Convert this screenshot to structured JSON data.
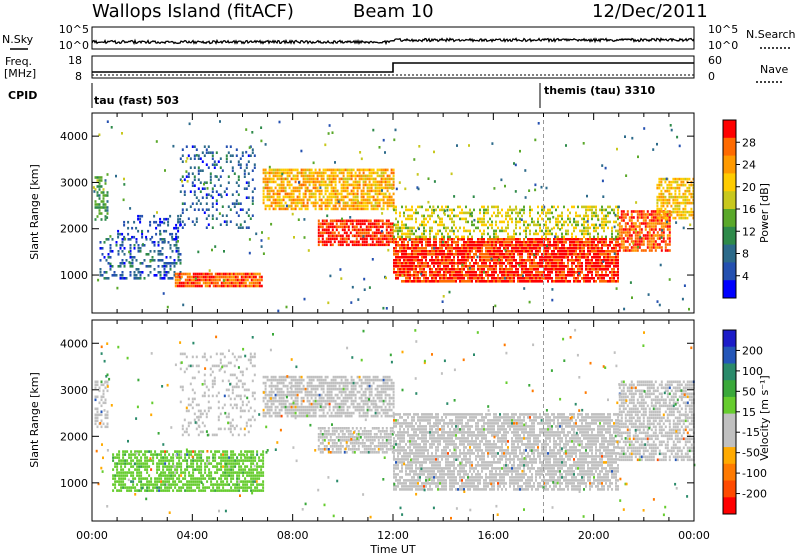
{
  "header": {
    "station": "Wallops Island (fitACF)",
    "beam": "Beam 10",
    "date": "12/Dec/2011"
  },
  "summary": {
    "nsky_label": "N.Sky",
    "nsky_ticks": [
      "10^5",
      "10^0"
    ],
    "nsearch_label": "N.Search",
    "nsearch_ticks": [
      "10^5",
      "10^0"
    ],
    "freq_label_1": "Freq.",
    "freq_label_2": "[MHz]",
    "freq_ticks": [
      "18",
      "8"
    ],
    "nave_label": "Nave",
    "nave_ticks": [
      "60",
      "0"
    ],
    "cpid_label": "CPID",
    "cpid_segments": [
      "tau (fast) 503",
      "themis (tau) 3310"
    ]
  },
  "power_colorbar": {
    "label": "Power [dB]",
    "ticks": [
      "28",
      "24",
      "20",
      "16",
      "12",
      "8",
      "4"
    ],
    "colors": [
      "#ff0000",
      "#ff6a00",
      "#ff9a00",
      "#ffcc00",
      "#c8c81e",
      "#5aa82a",
      "#2e8a4a",
      "#2c6a8a",
      "#2450b0",
      "#0000ff"
    ]
  },
  "velocity_colorbar": {
    "label": "Velocity [m s⁻¹]",
    "ticks": [
      "200",
      "100",
      "50",
      "15",
      "-15",
      "-50",
      "-100",
      "-200"
    ],
    "colors": [
      "#1c1cc8",
      "#2456b8",
      "#2a8a6a",
      "#3aa83a",
      "#66cc2e",
      "#c0c0c0",
      "#c0c0c0",
      "#ffaa00",
      "#ff7a00",
      "#ff4a00",
      "#ff0000"
    ]
  },
  "axes": {
    "ylabel": "Slant Range [km]",
    "yticks": [
      "4000",
      "3000",
      "2000",
      "1000"
    ],
    "xticks": [
      "00:00",
      "04:00",
      "08:00",
      "12:00",
      "16:00",
      "20:00",
      "00:00"
    ],
    "xlabel": "Time UT"
  },
  "chart_data": [
    {
      "type": "heatmap",
      "title": "",
      "xlabel": "Time UT",
      "ylabel": "Slant Range [km]",
      "xlim": [
        0,
        24
      ],
      "ylim": [
        180,
        4500
      ],
      "colorbar": {
        "label": "Power [dB]",
        "ticks": [
          4,
          8,
          12,
          16,
          20,
          24,
          28
        ],
        "range": [
          0,
          30
        ]
      },
      "regions": [
        {
          "t0": 0.1,
          "t1": 0.6,
          "r0": 2200,
          "r1": 3200,
          "value": 12,
          "density": 0.5
        },
        {
          "t0": 0.3,
          "t1": 3.5,
          "r0": 900,
          "r1": 1800,
          "value": 6,
          "density": 0.35
        },
        {
          "t0": 1.0,
          "t1": 3.5,
          "r0": 1800,
          "r1": 2300,
          "value": 5,
          "density": 0.25
        },
        {
          "t0": 3.3,
          "t1": 6.8,
          "r0": 750,
          "r1": 1050,
          "value": 26,
          "density": 0.9
        },
        {
          "t0": 3.5,
          "t1": 6.5,
          "r0": 2000,
          "r1": 3800,
          "value": 6,
          "density": 0.22
        },
        {
          "t0": 6.8,
          "t1": 12.0,
          "r0": 2400,
          "r1": 3300,
          "value": 21,
          "density": 0.75
        },
        {
          "t0": 9.0,
          "t1": 12.0,
          "r0": 1650,
          "r1": 2200,
          "value": 28,
          "density": 0.8
        },
        {
          "t0": 12.0,
          "t1": 21.0,
          "r0": 850,
          "r1": 1800,
          "value": 28,
          "density": 0.85
        },
        {
          "t0": 12.0,
          "t1": 21.0,
          "r0": 1800,
          "r1": 2500,
          "value": 17,
          "density": 0.45
        },
        {
          "t0": 21.0,
          "t1": 23.0,
          "r0": 1500,
          "r1": 2400,
          "value": 26,
          "density": 0.8
        },
        {
          "t0": 22.5,
          "t1": 24.0,
          "r0": 2200,
          "r1": 3100,
          "value": 20,
          "density": 0.7
        }
      ]
    },
    {
      "type": "heatmap",
      "title": "",
      "xlabel": "Time UT",
      "ylabel": "Slant Range [km]",
      "xlim": [
        0,
        24
      ],
      "ylim": [
        180,
        4500
      ],
      "colorbar": {
        "label": "Velocity [m s⁻¹]",
        "ticks": [
          -200,
          -100,
          -50,
          -15,
          15,
          50,
          100,
          200
        ],
        "range": [
          -250,
          250
        ]
      },
      "regions": [
        {
          "t0": 0.1,
          "t1": 0.6,
          "r0": 2200,
          "r1": 3200,
          "value": 0,
          "density": 0.5
        },
        {
          "t0": 0.8,
          "t1": 6.8,
          "r0": 800,
          "r1": 1700,
          "value": 55,
          "density": 0.7
        },
        {
          "t0": 3.5,
          "t1": 6.5,
          "r0": 2000,
          "r1": 3800,
          "value": 0,
          "density": 0.2
        },
        {
          "t0": 6.8,
          "t1": 12.0,
          "r0": 2400,
          "r1": 3300,
          "value": 0,
          "density": 0.75
        },
        {
          "t0": 9.0,
          "t1": 12.0,
          "r0": 1650,
          "r1": 2200,
          "value": 0,
          "density": 0.75
        },
        {
          "t0": 12.0,
          "t1": 21.0,
          "r0": 850,
          "r1": 2500,
          "value": 0,
          "density": 0.75
        },
        {
          "t0": 21.0,
          "t1": 24.0,
          "r0": 1500,
          "r1": 3200,
          "value": 0,
          "density": 0.7
        }
      ]
    }
  ]
}
